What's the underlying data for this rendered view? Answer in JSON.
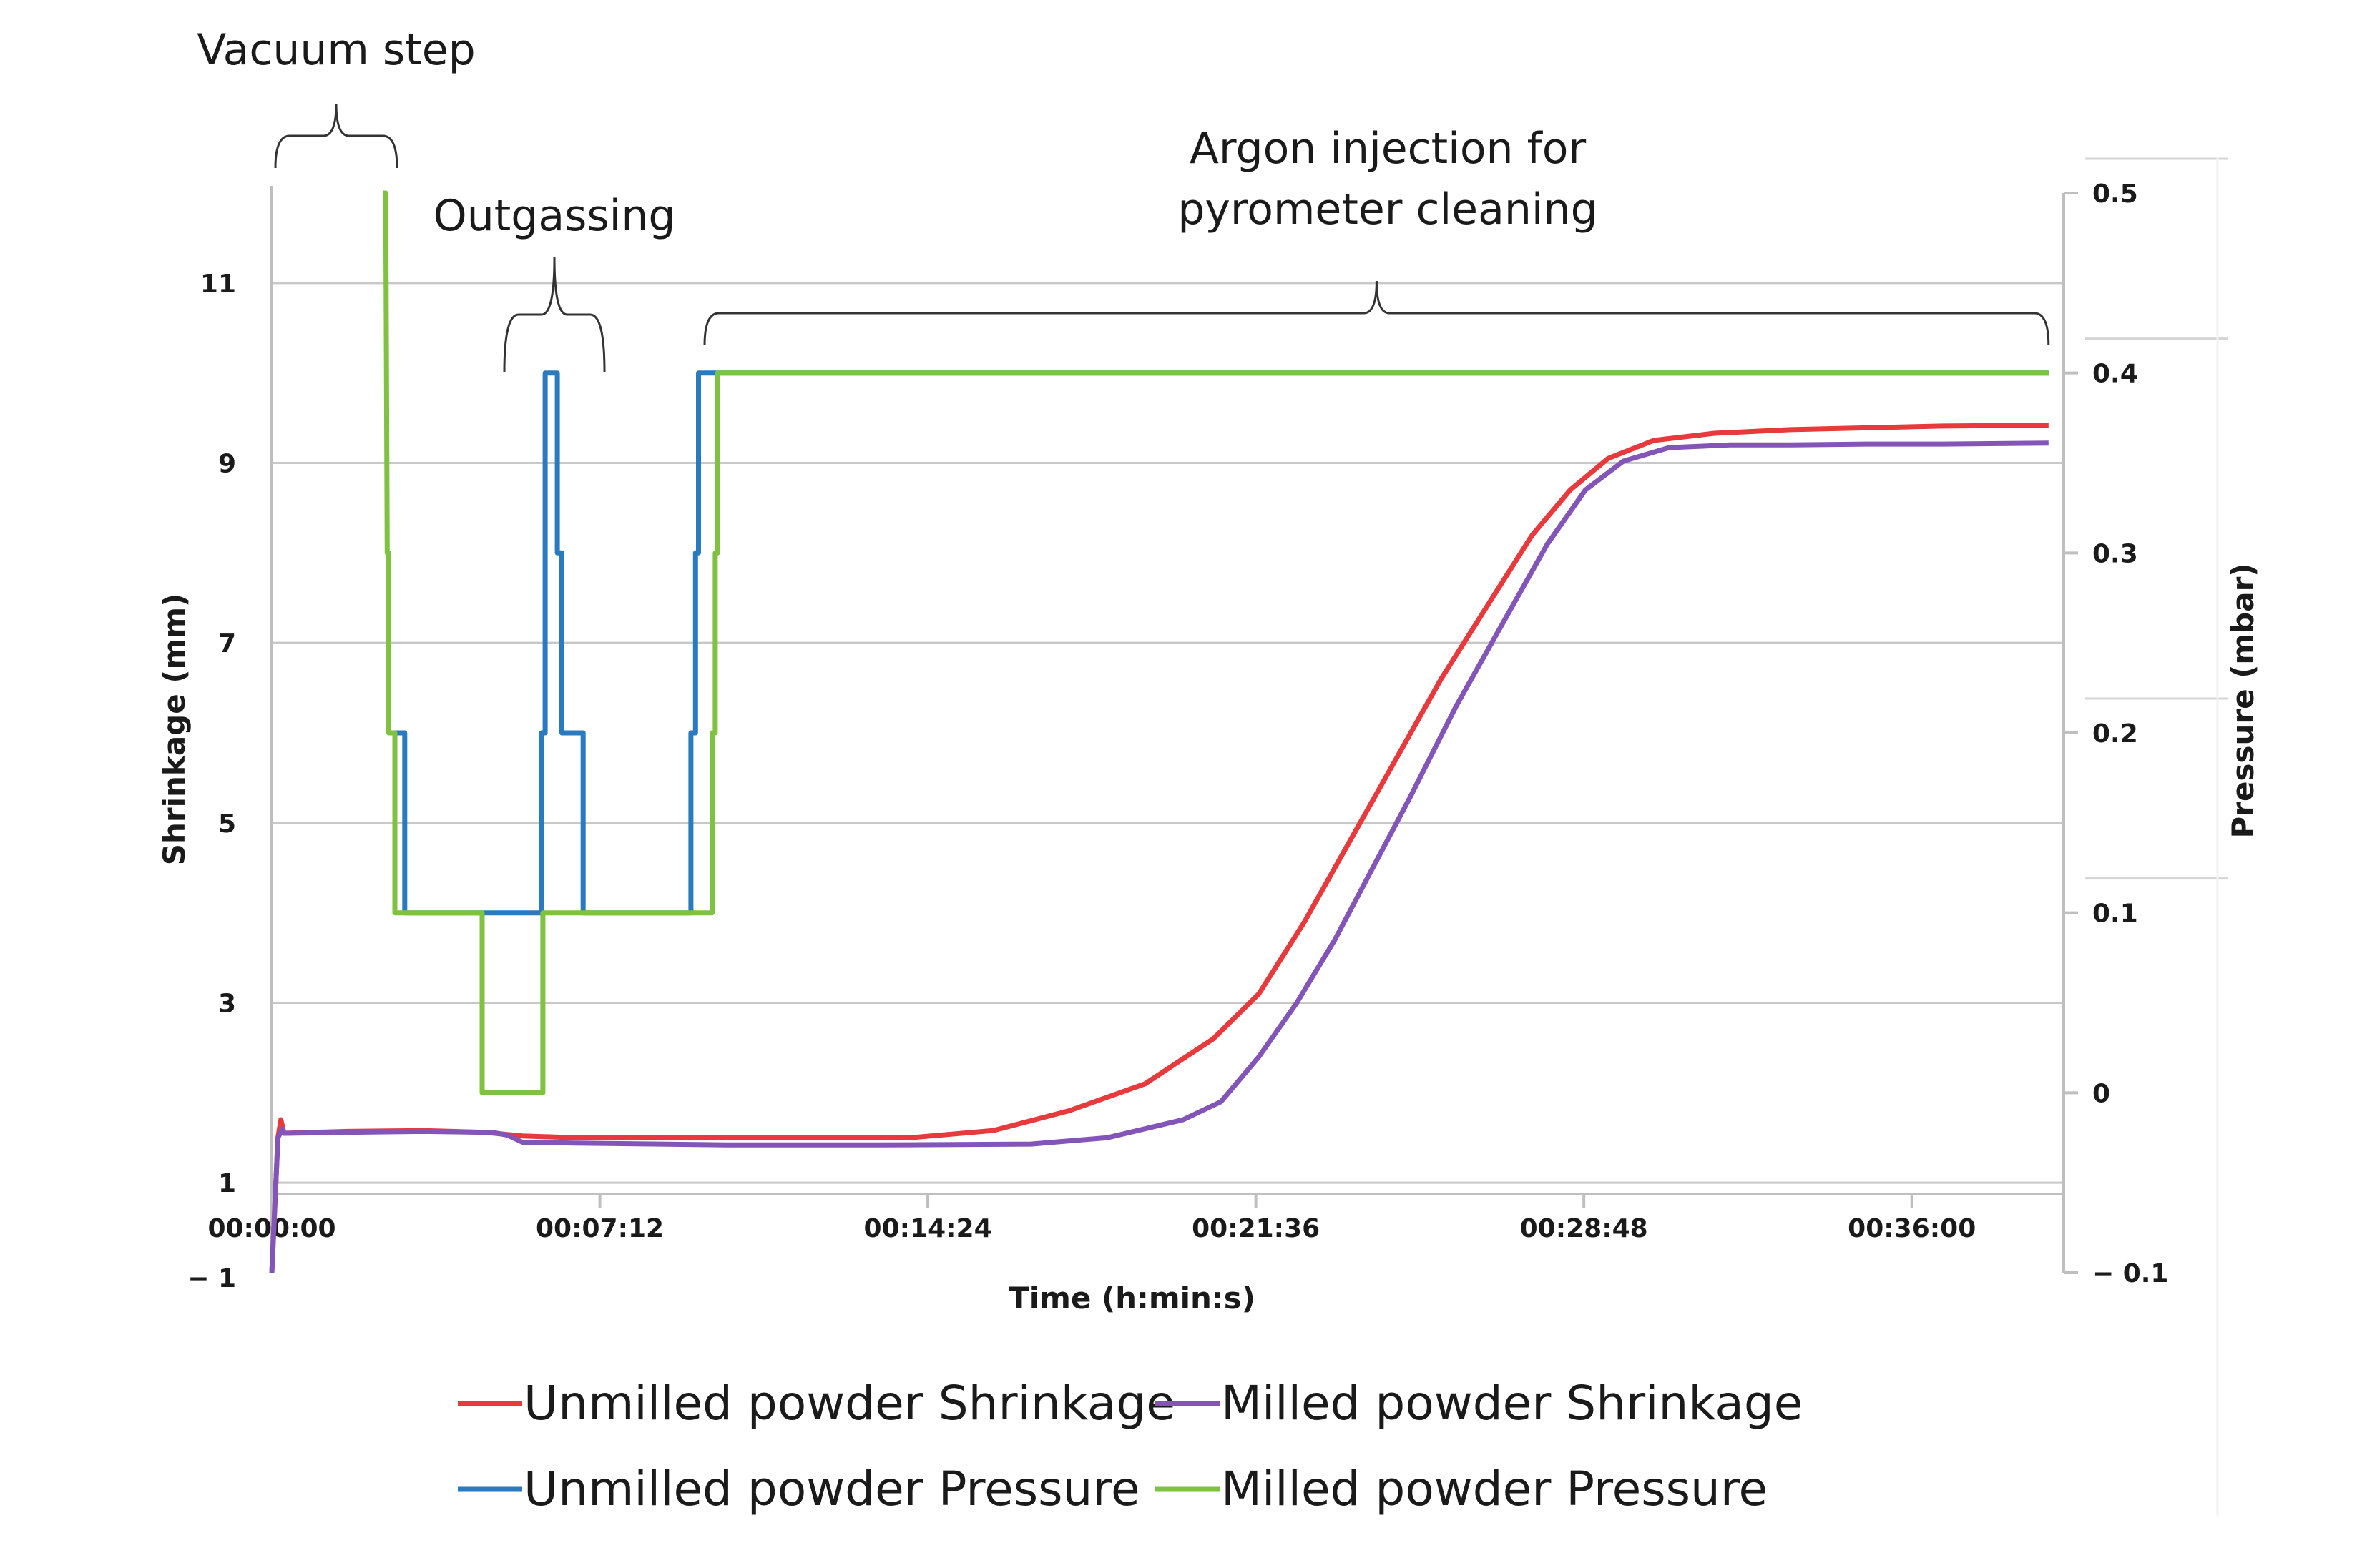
{
  "chart_data": {
    "type": "line",
    "xlabel": "Time (h:min:s)",
    "ylabel": "Shrinkage (mm)",
    "y2label": "Pressure (mbar)",
    "x_unit": "seconds",
    "xlim": [
      0,
      2360
    ],
    "ylim": [
      0,
      12
    ],
    "y2lim": [
      -0.1,
      0.5
    ],
    "x_ticks": [
      {
        "value": 0,
        "label": "00:00:00"
      },
      {
        "value": 432,
        "label": "00:07:12"
      },
      {
        "value": 864,
        "label": "00:14:24"
      },
      {
        "value": 1296,
        "label": "00:21:36"
      },
      {
        "value": 1728,
        "label": "00:28:48"
      },
      {
        "value": 2160,
        "label": "00:36:00"
      }
    ],
    "y_ticks": [
      {
        "value": 1,
        "label": "1"
      },
      {
        "value": 3,
        "label": "3"
      },
      {
        "value": 5,
        "label": "5"
      },
      {
        "value": 7,
        "label": "7"
      },
      {
        "value": 9,
        "label": "9"
      },
      {
        "value": 11,
        "label": "11"
      }
    ],
    "y_extra_label": "− 1",
    "y2_ticks": [
      {
        "value": 0.5,
        "label": "0.5"
      },
      {
        "value": 0.4,
        "label": "0.4"
      },
      {
        "value": 0.3,
        "label": "0.3"
      },
      {
        "value": 0.2,
        "label": "0.2"
      },
      {
        "value": 0.1,
        "label": "0.1"
      },
      {
        "value": 0,
        "label": "0"
      },
      {
        "value": -0.1,
        "label": "− 0.1"
      }
    ],
    "grid": true,
    "legend_position": "bottom",
    "series": [
      {
        "name": "Unmilled powder Shrinkage",
        "axis": "left",
        "color": "#e8393c",
        "points": [
          [
            0,
            0
          ],
          [
            8,
            1.5
          ],
          [
            12,
            1.7
          ],
          [
            16,
            1.55
          ],
          [
            100,
            1.57
          ],
          [
            200,
            1.58
          ],
          [
            280,
            1.56
          ],
          [
            330,
            1.52
          ],
          [
            400,
            1.5
          ],
          [
            600,
            1.5
          ],
          [
            840,
            1.5
          ],
          [
            950,
            1.58
          ],
          [
            1050,
            1.8
          ],
          [
            1150,
            2.1
          ],
          [
            1240,
            2.6
          ],
          [
            1300,
            3.1
          ],
          [
            1360,
            3.9
          ],
          [
            1420,
            4.8
          ],
          [
            1480,
            5.7
          ],
          [
            1540,
            6.6
          ],
          [
            1600,
            7.4
          ],
          [
            1660,
            8.2
          ],
          [
            1710,
            8.7
          ],
          [
            1760,
            9.05
          ],
          [
            1820,
            9.25
          ],
          [
            1900,
            9.33
          ],
          [
            2000,
            9.37
          ],
          [
            2100,
            9.39
          ],
          [
            2200,
            9.41
          ],
          [
            2340,
            9.42
          ]
        ]
      },
      {
        "name": "Milled powder Shrinkage",
        "axis": "left",
        "color": "#8455b8",
        "points": [
          [
            0,
            0
          ],
          [
            8,
            1.5
          ],
          [
            14,
            1.6
          ],
          [
            16,
            1.55
          ],
          [
            100,
            1.56
          ],
          [
            200,
            1.57
          ],
          [
            290,
            1.56
          ],
          [
            310,
            1.53
          ],
          [
            330,
            1.45
          ],
          [
            400,
            1.44
          ],
          [
            600,
            1.42
          ],
          [
            800,
            1.42
          ],
          [
            1000,
            1.43
          ],
          [
            1100,
            1.5
          ],
          [
            1200,
            1.7
          ],
          [
            1250,
            1.9
          ],
          [
            1300,
            2.4
          ],
          [
            1350,
            3.0
          ],
          [
            1400,
            3.7
          ],
          [
            1450,
            4.5
          ],
          [
            1500,
            5.3
          ],
          [
            1560,
            6.3
          ],
          [
            1620,
            7.2
          ],
          [
            1680,
            8.1
          ],
          [
            1730,
            8.7
          ],
          [
            1780,
            9.02
          ],
          [
            1840,
            9.17
          ],
          [
            1920,
            9.2
          ],
          [
            2000,
            9.2
          ],
          [
            2100,
            9.21
          ],
          [
            2200,
            9.21
          ],
          [
            2340,
            9.22
          ]
        ]
      },
      {
        "name": "Unmilled powder Pressure",
        "axis": "right",
        "color": "#2a7ac0",
        "points": [
          [
            160,
            0.2
          ],
          [
            175,
            0.2
          ],
          [
            175,
            0.1
          ],
          [
            355,
            0.1
          ],
          [
            355,
            0.2
          ],
          [
            360,
            0.2
          ],
          [
            360,
            0.4
          ],
          [
            376,
            0.4
          ],
          [
            376,
            0.3
          ],
          [
            382,
            0.3
          ],
          [
            382,
            0.2
          ],
          [
            410,
            0.2
          ],
          [
            410,
            0.1
          ],
          [
            552,
            0.1
          ],
          [
            552,
            0.2
          ],
          [
            558,
            0.2
          ],
          [
            558,
            0.3
          ],
          [
            562,
            0.3
          ],
          [
            562,
            0.4
          ],
          [
            2340,
            0.4
          ]
        ]
      },
      {
        "name": "Milled powder Pressure",
        "axis": "right",
        "color": "#7fc241",
        "points": [
          [
            147,
            0.5
          ],
          [
            150,
            0.5
          ],
          [
            152,
            0.3
          ],
          [
            154,
            0.3
          ],
          [
            154,
            0.2
          ],
          [
            162,
            0.2
          ],
          [
            162,
            0.1
          ],
          [
            277,
            0.1
          ],
          [
            277,
            0.0
          ],
          [
            357,
            0.0
          ],
          [
            357,
            0.1
          ],
          [
            580,
            0.1
          ],
          [
            580,
            0.2
          ],
          [
            584,
            0.2
          ],
          [
            584,
            0.3
          ],
          [
            587,
            0.3
          ],
          [
            587,
            0.4
          ],
          [
            2340,
            0.4
          ]
        ]
      }
    ],
    "annotations": [
      {
        "id": "vacuum",
        "lines": [
          "Vacuum step"
        ],
        "x_start": 0,
        "x_end": 160
      },
      {
        "id": "outgassing",
        "lines": [
          "Outgassing"
        ],
        "x_start": 305,
        "x_end": 435
      },
      {
        "id": "argon",
        "lines": [
          "Argon injection for",
          "pyrometer cleaning"
        ],
        "x_start": 570,
        "x_end": 2340
      }
    ]
  }
}
